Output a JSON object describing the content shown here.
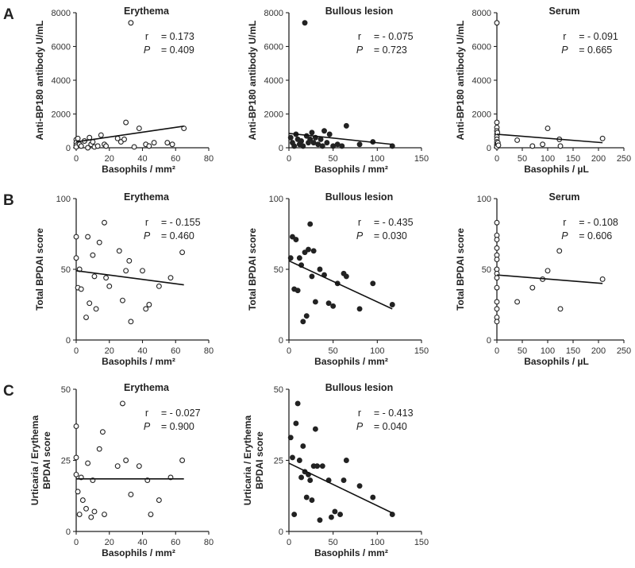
{
  "chart_data": [
    {
      "type": "scatter",
      "panel": "A",
      "title": "Erythema",
      "xlabel": "Basophils / mm²",
      "ylabel": "Anti-BP180 antibody U/mL",
      "xlim": [
        0,
        80
      ],
      "ylim": [
        0,
        8000
      ],
      "xticks": [
        "0",
        "20",
        "40",
        "60",
        "80"
      ],
      "yticks": [
        "0",
        "2000",
        "4000",
        "6000",
        "8000"
      ],
      "marker": "open",
      "r_label": "r",
      "r_text": "=   0.173",
      "p_label": "P",
      "p_text": "=   0.409",
      "trend": [
        [
          0,
          350
        ],
        [
          65,
          1280
        ]
      ],
      "points": [
        [
          0,
          480
        ],
        [
          0,
          300
        ],
        [
          0,
          150
        ],
        [
          0,
          50
        ],
        [
          1,
          550
        ],
        [
          2,
          200
        ],
        [
          3,
          100
        ],
        [
          5,
          400
        ],
        [
          7,
          0
        ],
        [
          8,
          600
        ],
        [
          9,
          200
        ],
        [
          10,
          350
        ],
        [
          11,
          50
        ],
        [
          13,
          100
        ],
        [
          15,
          750
        ],
        [
          17,
          200
        ],
        [
          18,
          100
        ],
        [
          25,
          550
        ],
        [
          27,
          350
        ],
        [
          29,
          500
        ],
        [
          30,
          1500
        ],
        [
          33,
          7400
        ],
        [
          35,
          50
        ],
        [
          38,
          1150
        ],
        [
          42,
          200
        ],
        [
          44,
          100
        ],
        [
          47,
          300
        ],
        [
          55,
          300
        ],
        [
          58,
          200
        ],
        [
          65,
          1150
        ]
      ]
    },
    {
      "type": "scatter",
      "panel": "",
      "title": "Bullous lesion",
      "xlabel": "Basophils / mm²",
      "ylabel": "Anti-BP180 antibody U/mL",
      "xlim": [
        0,
        150
      ],
      "ylim": [
        0,
        8000
      ],
      "xticks": [
        "0",
        "50",
        "100",
        "150"
      ],
      "yticks": [
        "0",
        "2000",
        "4000",
        "6000",
        "8000"
      ],
      "marker": "filled",
      "r_label": "r",
      "r_text": "= - 0.075",
      "p_label": "P",
      "p_text": "=   0.723",
      "trend": [
        [
          0,
          850
        ],
        [
          117,
          200
        ]
      ],
      "points": [
        [
          2,
          600
        ],
        [
          4,
          300
        ],
        [
          6,
          100
        ],
        [
          8,
          800
        ],
        [
          10,
          500
        ],
        [
          12,
          200
        ],
        [
          14,
          400
        ],
        [
          16,
          100
        ],
        [
          18,
          7400
        ],
        [
          20,
          700
        ],
        [
          22,
          300
        ],
        [
          24,
          500
        ],
        [
          26,
          900
        ],
        [
          28,
          300
        ],
        [
          30,
          600
        ],
        [
          33,
          200
        ],
        [
          36,
          500
        ],
        [
          38,
          100
        ],
        [
          40,
          1000
        ],
        [
          43,
          300
        ],
        [
          46,
          800
        ],
        [
          50,
          100
        ],
        [
          55,
          200
        ],
        [
          60,
          100
        ],
        [
          65,
          1300
        ],
        [
          80,
          200
        ],
        [
          95,
          350
        ],
        [
          117,
          100
        ]
      ]
    },
    {
      "type": "scatter",
      "panel": "",
      "title": "Serum",
      "xlabel": "Basophils / µL",
      "ylabel": "Anti-BP180 antibody U/mL",
      "xlim": [
        0,
        250
      ],
      "ylim": [
        0,
        8000
      ],
      "xticks": [
        "0",
        "50",
        "100",
        "150",
        "200",
        "250"
      ],
      "yticks": [
        "0",
        "2000",
        "4000",
        "6000",
        "8000"
      ],
      "marker": "open",
      "r_label": "r",
      "r_text": "= - 0.091",
      "p_label": "P",
      "p_text": "=   0.665",
      "trend": [
        [
          0,
          800
        ],
        [
          208,
          300
        ]
      ],
      "points": [
        [
          0,
          7400
        ],
        [
          0,
          1500
        ],
        [
          0,
          1200
        ],
        [
          0,
          1000
        ],
        [
          0,
          800
        ],
        [
          0,
          650
        ],
        [
          0,
          500
        ],
        [
          0,
          350
        ],
        [
          0,
          200
        ],
        [
          0,
          100
        ],
        [
          0,
          50
        ],
        [
          1,
          900
        ],
        [
          2,
          300
        ],
        [
          3,
          150
        ],
        [
          40,
          450
        ],
        [
          70,
          100
        ],
        [
          90,
          200
        ],
        [
          100,
          1150
        ],
        [
          123,
          500
        ],
        [
          125,
          100
        ],
        [
          208,
          550
        ]
      ]
    },
    {
      "type": "scatter",
      "panel": "B",
      "title": "Erythema",
      "xlabel": "Basophils / mm²",
      "ylabel": "Total BPDAI score",
      "xlim": [
        0,
        80
      ],
      "ylim": [
        0,
        100
      ],
      "xticks": [
        "0",
        "20",
        "40",
        "60",
        "80"
      ],
      "yticks": [
        "0",
        "50",
        "100"
      ],
      "marker": "open",
      "r_label": "r",
      "r_text": "= - 0.155",
      "p_label": "P",
      "p_text": "=   0.460",
      "trend": [
        [
          0,
          49
        ],
        [
          65,
          39
        ]
      ],
      "points": [
        [
          0,
          73
        ],
        [
          0,
          58
        ],
        [
          1,
          37
        ],
        [
          2,
          50
        ],
        [
          3,
          36
        ],
        [
          6,
          16
        ],
        [
          7,
          73
        ],
        [
          8,
          26
        ],
        [
          10,
          60
        ],
        [
          11,
          45
        ],
        [
          12,
          22
        ],
        [
          14,
          69
        ],
        [
          17,
          83
        ],
        [
          18,
          44
        ],
        [
          20,
          38
        ],
        [
          26,
          63
        ],
        [
          28,
          28
        ],
        [
          30,
          49
        ],
        [
          32,
          56
        ],
        [
          33,
          13
        ],
        [
          40,
          49
        ],
        [
          42,
          22
        ],
        [
          44,
          25
        ],
        [
          50,
          38
        ],
        [
          57,
          44
        ],
        [
          64,
          62
        ]
      ]
    },
    {
      "type": "scatter",
      "panel": "",
      "title": "Bullous lesion",
      "xlabel": "Basophils / mm²",
      "ylabel": "Total BPDAI score",
      "xlim": [
        0,
        150
      ],
      "ylim": [
        0,
        100
      ],
      "xticks": [
        "0",
        "50",
        "100",
        "150"
      ],
      "yticks": [
        "0",
        "50",
        "100"
      ],
      "marker": "filled",
      "r_label": "r",
      "r_text": "= - 0.435",
      "p_label": "P",
      "p_text": "=   0.030",
      "trend": [
        [
          0,
          56
        ],
        [
          117,
          22
        ]
      ],
      "points": [
        [
          2,
          58
        ],
        [
          4,
          73
        ],
        [
          6,
          36
        ],
        [
          8,
          71
        ],
        [
          10,
          35
        ],
        [
          12,
          58
        ],
        [
          14,
          53
        ],
        [
          16,
          13
        ],
        [
          18,
          62
        ],
        [
          20,
          17
        ],
        [
          22,
          64
        ],
        [
          24,
          82
        ],
        [
          26,
          45
        ],
        [
          28,
          63
        ],
        [
          30,
          27
        ],
        [
          35,
          50
        ],
        [
          40,
          46
        ],
        [
          45,
          26
        ],
        [
          50,
          24
        ],
        [
          55,
          40
        ],
        [
          62,
          47
        ],
        [
          65,
          45
        ],
        [
          80,
          22
        ],
        [
          95,
          40
        ],
        [
          117,
          25
        ]
      ]
    },
    {
      "type": "scatter",
      "panel": "",
      "title": "Serum",
      "xlabel": "Basophils / µL",
      "ylabel": "Total BPDAI score",
      "xlim": [
        0,
        250
      ],
      "ylim": [
        0,
        100
      ],
      "xticks": [
        "0",
        "50",
        "100",
        "150",
        "200",
        "250"
      ],
      "yticks": [
        "0",
        "50",
        "100"
      ],
      "marker": "open",
      "r_label": "r",
      "r_text": "= - 0.108",
      "p_label": "P",
      "p_text": "=   0.606",
      "trend": [
        [
          0,
          46
        ],
        [
          208,
          40
        ]
      ],
      "points": [
        [
          0,
          83
        ],
        [
          0,
          74
        ],
        [
          0,
          71
        ],
        [
          0,
          65
        ],
        [
          0,
          60
        ],
        [
          0,
          57
        ],
        [
          0,
          50
        ],
        [
          0,
          47
        ],
        [
          0,
          44
        ],
        [
          0,
          37
        ],
        [
          0,
          27
        ],
        [
          0,
          22
        ],
        [
          0,
          16
        ],
        [
          0,
          13
        ],
        [
          40,
          27
        ],
        [
          70,
          37
        ],
        [
          90,
          43
        ],
        [
          100,
          49
        ],
        [
          123,
          63
        ],
        [
          125,
          22
        ],
        [
          208,
          43
        ]
      ]
    },
    {
      "type": "scatter",
      "panel": "C",
      "title": "Erythema",
      "xlabel": "Basophils / mm²",
      "ylabel": "Urticaria / Erythema BPDAI score",
      "ylabel_lines": [
        "Urticaria / Erythema",
        "BPDAI score"
      ],
      "xlim": [
        0,
        80
      ],
      "ylim": [
        0,
        50
      ],
      "xticks": [
        "0",
        "20",
        "40",
        "60",
        "80"
      ],
      "yticks": [
        "0",
        "25",
        "50"
      ],
      "marker": "open",
      "r_label": "r",
      "r_text": "= - 0.027",
      "p_label": "P",
      "p_text": "=   0.900",
      "trend": [
        [
          0,
          18.5
        ],
        [
          65,
          18.5
        ]
      ],
      "points": [
        [
          0,
          37
        ],
        [
          0,
          26
        ],
        [
          0,
          20
        ],
        [
          1,
          14
        ],
        [
          2,
          6
        ],
        [
          3,
          19
        ],
        [
          4,
          11
        ],
        [
          6,
          8
        ],
        [
          7,
          24
        ],
        [
          9,
          5
        ],
        [
          10,
          18
        ],
        [
          11,
          7
        ],
        [
          14,
          29
        ],
        [
          16,
          35
        ],
        [
          17,
          6
        ],
        [
          25,
          23
        ],
        [
          28,
          45
        ],
        [
          30,
          25
        ],
        [
          33,
          13
        ],
        [
          38,
          23
        ],
        [
          43,
          18
        ],
        [
          45,
          6
        ],
        [
          50,
          11
        ],
        [
          57,
          19
        ],
        [
          64,
          25
        ]
      ]
    },
    {
      "type": "scatter",
      "panel": "",
      "title": "Bullous lesion",
      "xlabel": "Basophils / mm²",
      "ylabel": "Urticaria / Erythema BPDAI score",
      "ylabel_lines": [
        "Urticaria / Erythema",
        "BPDAI score"
      ],
      "xlim": [
        0,
        150
      ],
      "ylim": [
        0,
        50
      ],
      "xticks": [
        "0",
        "50",
        "100",
        "150"
      ],
      "yticks": [
        "0",
        "25",
        "50"
      ],
      "marker": "filled",
      "r_label": "r",
      "r_text": "= - 0.413",
      "p_label": "P",
      "p_text": "=   0.040",
      "trend": [
        [
          0,
          24
        ],
        [
          117,
          6.5
        ]
      ],
      "points": [
        [
          2,
          33
        ],
        [
          4,
          26
        ],
        [
          6,
          6
        ],
        [
          8,
          38
        ],
        [
          10,
          45
        ],
        [
          12,
          25
        ],
        [
          14,
          19
        ],
        [
          16,
          30
        ],
        [
          18,
          21
        ],
        [
          20,
          12
        ],
        [
          22,
          20
        ],
        [
          24,
          18
        ],
        [
          26,
          11
        ],
        [
          28,
          23
        ],
        [
          30,
          36
        ],
        [
          32,
          23
        ],
        [
          35,
          4
        ],
        [
          38,
          23
        ],
        [
          45,
          18
        ],
        [
          48,
          5
        ],
        [
          52,
          7
        ],
        [
          58,
          6
        ],
        [
          62,
          18
        ],
        [
          65,
          25
        ],
        [
          80,
          16
        ],
        [
          95,
          12
        ],
        [
          117,
          6
        ]
      ]
    }
  ]
}
